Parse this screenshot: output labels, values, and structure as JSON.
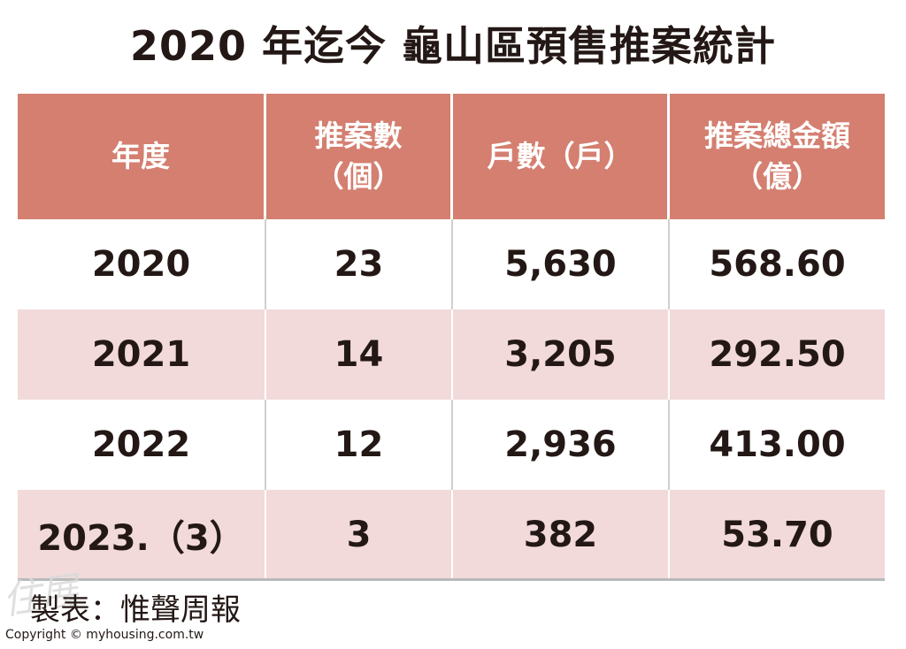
{
  "title": "2020 年迄今 龜山區預售推案統計",
  "chart_data": {
    "type": "table",
    "title": "2020 年迄今 龜山區預售推案統計",
    "columns": [
      "年度",
      "推案數\n（個）",
      "戶數（戶）",
      "推案總金額\n（億）"
    ],
    "rows": [
      [
        "2020",
        "23",
        "5,630",
        "568.60"
      ],
      [
        "2021",
        "14",
        "3,205",
        "292.50"
      ],
      [
        "2022",
        "12",
        "2,936",
        "413.00"
      ],
      [
        "2023.（3）",
        "3",
        "382",
        "53.70"
      ]
    ]
  },
  "watermark": "住展",
  "maker": "製表：惟聲周報",
  "copyright": "Copyright © myhousing.com.tw",
  "colors": {
    "header_bg": "#d47f70",
    "alt_row_bg": "#f2dada",
    "text": "#231815"
  }
}
